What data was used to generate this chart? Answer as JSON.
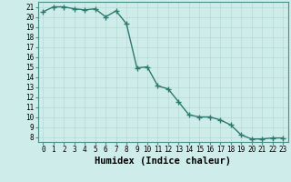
{
  "x": [
    0,
    1,
    2,
    3,
    4,
    5,
    6,
    7,
    8,
    9,
    10,
    11,
    12,
    13,
    14,
    15,
    16,
    17,
    18,
    19,
    20,
    21,
    22,
    23
  ],
  "y": [
    20.5,
    21.0,
    21.0,
    20.8,
    20.7,
    20.8,
    20.0,
    20.6,
    19.3,
    14.9,
    15.0,
    13.1,
    12.8,
    11.5,
    10.2,
    10.0,
    10.0,
    9.7,
    9.2,
    8.2,
    7.8,
    7.8,
    7.9,
    7.9
  ],
  "line_color": "#2d7a6e",
  "marker": "+",
  "marker_size": 4,
  "bg_color": "#ceecea",
  "grid_color": "#b8d8d4",
  "xlabel": "Humidex (Indice chaleur)",
  "xlim": [
    -0.5,
    23.5
  ],
  "ylim": [
    7.5,
    21.5
  ],
  "yticks": [
    8,
    9,
    10,
    11,
    12,
    13,
    14,
    15,
    16,
    17,
    18,
    19,
    20,
    21
  ],
  "xticks": [
    0,
    1,
    2,
    3,
    4,
    5,
    6,
    7,
    8,
    9,
    10,
    11,
    12,
    13,
    14,
    15,
    16,
    17,
    18,
    19,
    20,
    21,
    22,
    23
  ],
  "tick_fontsize": 5.5,
  "xlabel_fontsize": 7.5,
  "line_width": 1.0
}
